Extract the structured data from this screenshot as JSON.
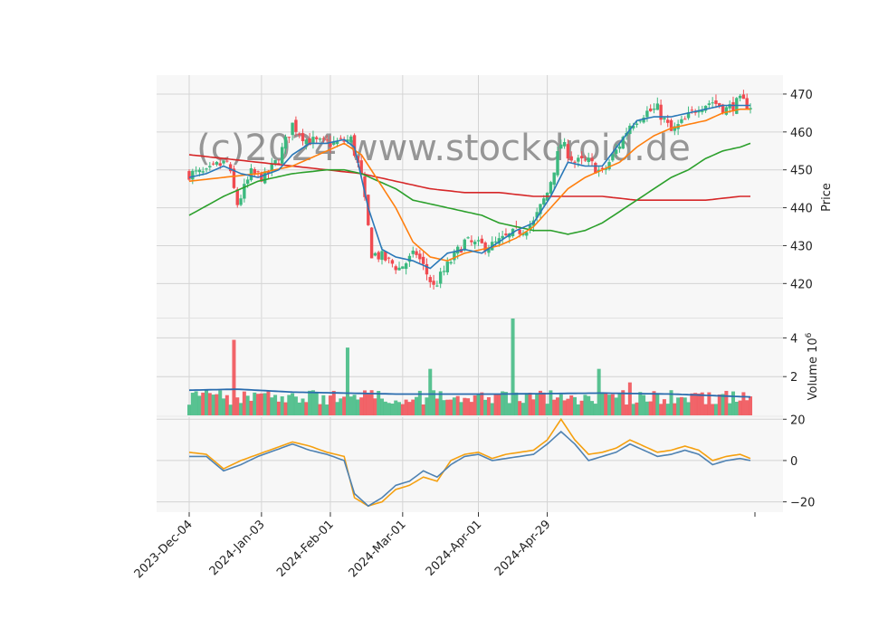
{
  "watermark": "(c)2024 www.stockdroid.de",
  "colors": {
    "panel_bg": "#f7f7f7",
    "grid": "#d4d4d4",
    "up": "#3cb97f",
    "down": "#f04a50",
    "ma_fast": "#2a78b8",
    "ma_mid": "#ff7f0e",
    "ma_slow": "#2ca02c",
    "ma_long": "#d62728",
    "vol_ma": "#2a6cae",
    "osc_a": "#4f82b2",
    "osc_b": "#f5a00f"
  },
  "chart_data": {
    "type": "candlestick",
    "date_ticks": [
      "2023-Dec-04",
      "2024-Jan-03",
      "2024-Feb-01",
      "2024-Mar-01",
      "2024-Apr-01",
      "2024-Apr-29"
    ],
    "price_panel": {
      "ylabel": "Price",
      "ylim": [
        411,
        475
      ],
      "yticks": [
        420,
        430,
        440,
        450,
        460,
        470
      ],
      "candles_close_anchors": [
        [
          0,
          449
        ],
        [
          5,
          449
        ],
        [
          8,
          451
        ],
        [
          11,
          452
        ],
        [
          14,
          441
        ],
        [
          18,
          449
        ],
        [
          22,
          448
        ],
        [
          26,
          453
        ],
        [
          30,
          462
        ],
        [
          34,
          458
        ],
        [
          38,
          457
        ],
        [
          42,
          457
        ],
        [
          47,
          458
        ],
        [
          50,
          448
        ],
        [
          53,
          428
        ],
        [
          56,
          427
        ],
        [
          61,
          424
        ],
        [
          66,
          428
        ],
        [
          71,
          419
        ],
        [
          76,
          426
        ],
        [
          80,
          431
        ],
        [
          84,
          430
        ],
        [
          88,
          430
        ],
        [
          92,
          432
        ],
        [
          96,
          434
        ],
        [
          100,
          436
        ],
        [
          104,
          444
        ],
        [
          108,
          457
        ],
        [
          112,
          452
        ],
        [
          116,
          452
        ],
        [
          120,
          449
        ],
        [
          124,
          455
        ],
        [
          128,
          462
        ],
        [
          132,
          465
        ],
        [
          136,
          466
        ],
        [
          140,
          460
        ],
        [
          144,
          463
        ],
        [
          148,
          467
        ],
        [
          152,
          468
        ],
        [
          156,
          466
        ],
        [
          160,
          468
        ],
        [
          163,
          467
        ]
      ],
      "ma_fast_anchors": [
        [
          0,
          448
        ],
        [
          5,
          449
        ],
        [
          10,
          451
        ],
        [
          15,
          449
        ],
        [
          20,
          448
        ],
        [
          26,
          450
        ],
        [
          30,
          454
        ],
        [
          35,
          457
        ],
        [
          40,
          457
        ],
        [
          45,
          458
        ],
        [
          48,
          456
        ],
        [
          52,
          440
        ],
        [
          56,
          429
        ],
        [
          60,
          427
        ],
        [
          65,
          426
        ],
        [
          70,
          424
        ],
        [
          75,
          428
        ],
        [
          80,
          429
        ],
        [
          85,
          428
        ],
        [
          90,
          431
        ],
        [
          95,
          434
        ],
        [
          100,
          436
        ],
        [
          105,
          443
        ],
        [
          110,
          452
        ],
        [
          115,
          451
        ],
        [
          120,
          451
        ],
        [
          125,
          457
        ],
        [
          130,
          463
        ],
        [
          135,
          464
        ],
        [
          140,
          464
        ],
        [
          145,
          465
        ],
        [
          150,
          466
        ],
        [
          155,
          467
        ],
        [
          160,
          467
        ],
        [
          163,
          467
        ]
      ],
      "ma_mid_anchors": [
        [
          0,
          447
        ],
        [
          10,
          448
        ],
        [
          20,
          449
        ],
        [
          30,
          451
        ],
        [
          40,
          455
        ],
        [
          45,
          457
        ],
        [
          50,
          454
        ],
        [
          55,
          447
        ],
        [
          60,
          440
        ],
        [
          65,
          431
        ],
        [
          70,
          427
        ],
        [
          75,
          426
        ],
        [
          80,
          428
        ],
        [
          85,
          429
        ],
        [
          90,
          430
        ],
        [
          95,
          432
        ],
        [
          100,
          435
        ],
        [
          105,
          440
        ],
        [
          110,
          445
        ],
        [
          115,
          448
        ],
        [
          120,
          450
        ],
        [
          125,
          452
        ],
        [
          130,
          456
        ],
        [
          135,
          459
        ],
        [
          140,
          461
        ],
        [
          145,
          462
        ],
        [
          150,
          463
        ],
        [
          155,
          465
        ],
        [
          160,
          466
        ],
        [
          163,
          466
        ]
      ],
      "ma_slow_anchors": [
        [
          0,
          438
        ],
        [
          10,
          443
        ],
        [
          20,
          447
        ],
        [
          30,
          449
        ],
        [
          40,
          450
        ],
        [
          45,
          450
        ],
        [
          50,
          449
        ],
        [
          55,
          447
        ],
        [
          60,
          445
        ],
        [
          65,
          442
        ],
        [
          70,
          441
        ],
        [
          75,
          440
        ],
        [
          80,
          439
        ],
        [
          85,
          438
        ],
        [
          90,
          436
        ],
        [
          95,
          435
        ],
        [
          100,
          434
        ],
        [
          105,
          434
        ],
        [
          110,
          433
        ],
        [
          115,
          434
        ],
        [
          120,
          436
        ],
        [
          125,
          439
        ],
        [
          130,
          442
        ],
        [
          135,
          445
        ],
        [
          140,
          448
        ],
        [
          145,
          450
        ],
        [
          150,
          453
        ],
        [
          155,
          455
        ],
        [
          160,
          456
        ],
        [
          163,
          457
        ]
      ],
      "ma_long_anchors": [
        [
          0,
          454
        ],
        [
          10,
          453
        ],
        [
          20,
          452
        ],
        [
          30,
          451
        ],
        [
          40,
          450
        ],
        [
          50,
          449
        ],
        [
          60,
          447
        ],
        [
          70,
          445
        ],
        [
          80,
          444
        ],
        [
          90,
          444
        ],
        [
          100,
          443
        ],
        [
          110,
          443
        ],
        [
          120,
          443
        ],
        [
          130,
          442
        ],
        [
          140,
          442
        ],
        [
          150,
          442
        ],
        [
          160,
          443
        ],
        [
          163,
          443
        ]
      ]
    },
    "volume_panel": {
      "ylabel": "Volume  10^6",
      "ylim": [
        0,
        5
      ],
      "yticks": [
        2,
        4
      ],
      "spikes": [
        [
          13,
          3.9
        ],
        [
          46,
          3.5
        ],
        [
          70,
          2.4
        ],
        [
          94,
          5.0
        ],
        [
          119,
          2.4
        ],
        [
          128,
          1.7
        ]
      ],
      "ma_level": 1.3
    },
    "osc_panel": {
      "ylim": [
        -25,
        21
      ],
      "yticks": [
        -20,
        0,
        20
      ],
      "series_a_anchors": [
        [
          0,
          2
        ],
        [
          5,
          2
        ],
        [
          10,
          -5
        ],
        [
          15,
          -2
        ],
        [
          20,
          2
        ],
        [
          25,
          5
        ],
        [
          30,
          8
        ],
        [
          35,
          5
        ],
        [
          40,
          3
        ],
        [
          45,
          0
        ],
        [
          48,
          -16
        ],
        [
          52,
          -22
        ],
        [
          56,
          -18
        ],
        [
          60,
          -12
        ],
        [
          64,
          -10
        ],
        [
          68,
          -5
        ],
        [
          72,
          -8
        ],
        [
          76,
          -2
        ],
        [
          80,
          2
        ],
        [
          84,
          3
        ],
        [
          88,
          0
        ],
        [
          92,
          1
        ],
        [
          96,
          2
        ],
        [
          100,
          3
        ],
        [
          104,
          8
        ],
        [
          108,
          14
        ],
        [
          112,
          8
        ],
        [
          116,
          0
        ],
        [
          120,
          2
        ],
        [
          124,
          4
        ],
        [
          128,
          8
        ],
        [
          132,
          5
        ],
        [
          136,
          2
        ],
        [
          140,
          3
        ],
        [
          144,
          5
        ],
        [
          148,
          3
        ],
        [
          152,
          -2
        ],
        [
          156,
          0
        ],
        [
          160,
          1
        ],
        [
          163,
          0
        ]
      ],
      "series_b_anchors": [
        [
          0,
          4
        ],
        [
          5,
          3
        ],
        [
          10,
          -4
        ],
        [
          15,
          0
        ],
        [
          20,
          3
        ],
        [
          25,
          6
        ],
        [
          30,
          9
        ],
        [
          35,
          7
        ],
        [
          40,
          4
        ],
        [
          45,
          2
        ],
        [
          48,
          -18
        ],
        [
          52,
          -22
        ],
        [
          56,
          -20
        ],
        [
          60,
          -14
        ],
        [
          64,
          -12
        ],
        [
          68,
          -8
        ],
        [
          72,
          -10
        ],
        [
          76,
          0
        ],
        [
          80,
          3
        ],
        [
          84,
          4
        ],
        [
          88,
          1
        ],
        [
          92,
          3
        ],
        [
          96,
          4
        ],
        [
          100,
          5
        ],
        [
          104,
          10
        ],
        [
          108,
          20
        ],
        [
          112,
          10
        ],
        [
          116,
          3
        ],
        [
          120,
          4
        ],
        [
          124,
          6
        ],
        [
          128,
          10
        ],
        [
          132,
          7
        ],
        [
          136,
          4
        ],
        [
          140,
          5
        ],
        [
          144,
          7
        ],
        [
          148,
          5
        ],
        [
          152,
          0
        ],
        [
          156,
          2
        ],
        [
          160,
          3
        ],
        [
          163,
          1
        ]
      ]
    },
    "n_sessions": 164
  }
}
